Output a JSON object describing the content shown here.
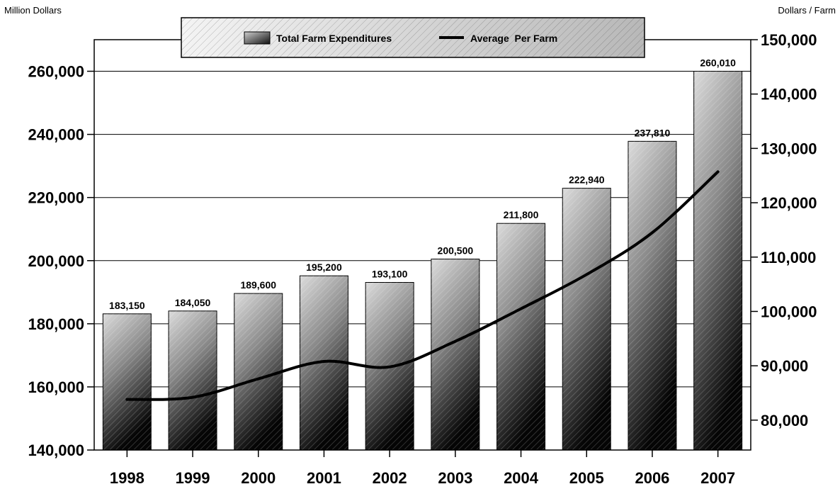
{
  "chart_data": {
    "type": "bar",
    "categories": [
      "1998",
      "1999",
      "2000",
      "2001",
      "2002",
      "2003",
      "2004",
      "2005",
      "2006",
      "2007"
    ],
    "series": [
      {
        "name": "Total Farm Expenditures",
        "kind": "bar",
        "axis": "left",
        "values": [
          183150,
          184050,
          189600,
          195200,
          193100,
          200500,
          211800,
          222940,
          237810,
          260010
        ],
        "value_labels": [
          "183,150",
          "184,050",
          "189,600",
          "195,200",
          "193,100",
          "200,500",
          "211,800",
          "222,940",
          "237,810",
          "260,010"
        ]
      },
      {
        "name": "Average  Per Farm",
        "kind": "line",
        "axis": "right",
        "values": [
          83800,
          84200,
          87600,
          90800,
          89800,
          94500,
          100500,
          106800,
          114500,
          125700
        ]
      }
    ],
    "left_axis": {
      "label": "Million Dollars",
      "range": [
        140000,
        270000
      ],
      "ticks": [
        140000,
        160000,
        180000,
        200000,
        220000,
        240000,
        260000
      ],
      "tick_labels": [
        "140,000",
        "160,000",
        "180,000",
        "200,000",
        "220,000",
        "240,000",
        "260,000"
      ]
    },
    "right_axis": {
      "label": "Dollars / Farm",
      "range": [
        74500,
        150000
      ],
      "ticks": [
        80000,
        90000,
        100000,
        110000,
        120000,
        130000,
        140000,
        150000
      ],
      "tick_labels": [
        "80,000",
        "90,000",
        "100,000",
        "110,000",
        "120,000",
        "130,000",
        "140,000",
        "150,000"
      ]
    },
    "grid": true,
    "legend_position": "top-center",
    "colors": {
      "bar_light": "#dcdcdc",
      "bar_dark": "#050505",
      "line": "#000000",
      "grid": "#000000"
    }
  }
}
